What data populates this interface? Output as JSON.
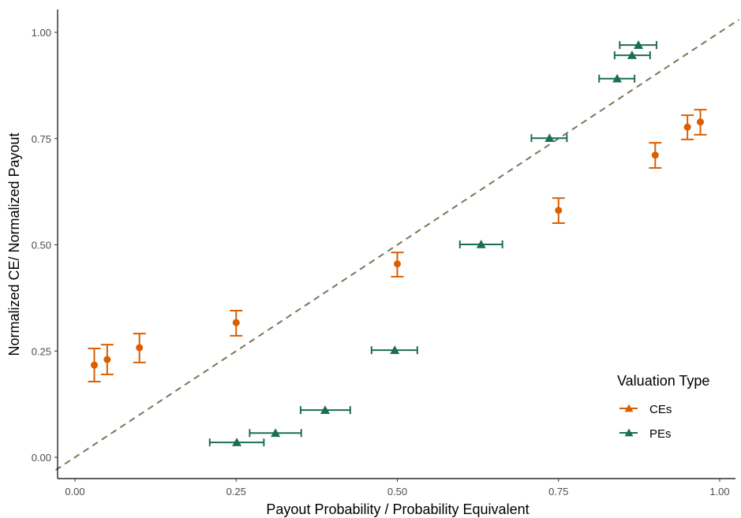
{
  "chart_data": {
    "type": "scatter",
    "xlabel": "Payout Probability / Probability Equivalent",
    "ylabel": "Normalized CE/ Normalized Payout",
    "xlim": [
      -0.02,
      1.03
    ],
    "ylim": [
      -0.03,
      1.03
    ],
    "x_ticks": [
      "0.00",
      "0.25",
      "0.50",
      "0.75",
      "1.00"
    ],
    "y_ticks": [
      "0.00",
      "0.25",
      "0.50",
      "0.75",
      "1.00"
    ],
    "grid": false,
    "reference_line": {
      "type": "y=x",
      "style": "dashed",
      "color": "#77775A"
    },
    "legend": {
      "title": "Valuation Type",
      "placement": "right"
    },
    "series": [
      {
        "name": "CEs",
        "color": "#D95F02",
        "marker": "circle",
        "error": "vertical",
        "points": [
          {
            "x": 0.03,
            "y": 0.217,
            "lo": 0.178,
            "hi": 0.256
          },
          {
            "x": 0.05,
            "y": 0.23,
            "lo": 0.195,
            "hi": 0.265
          },
          {
            "x": 0.1,
            "y": 0.258,
            "lo": 0.223,
            "hi": 0.291
          },
          {
            "x": 0.25,
            "y": 0.317,
            "lo": 0.286,
            "hi": 0.345
          },
          {
            "x": 0.5,
            "y": 0.455,
            "lo": 0.425,
            "hi": 0.482
          },
          {
            "x": 0.75,
            "y": 0.581,
            "lo": 0.551,
            "hi": 0.61
          },
          {
            "x": 0.9,
            "y": 0.711,
            "lo": 0.681,
            "hi": 0.74
          },
          {
            "x": 0.95,
            "y": 0.777,
            "lo": 0.748,
            "hi": 0.805
          },
          {
            "x": 0.97,
            "y": 0.789,
            "lo": 0.759,
            "hi": 0.818
          }
        ]
      },
      {
        "name": "PEs",
        "color": "#1B6E55",
        "marker": "triangle",
        "error": "horizontal",
        "points": [
          {
            "y": 0.035,
            "x": 0.251,
            "lo": 0.209,
            "hi": 0.293
          },
          {
            "y": 0.057,
            "x": 0.311,
            "lo": 0.271,
            "hi": 0.351
          },
          {
            "y": 0.111,
            "x": 0.388,
            "lo": 0.35,
            "hi": 0.427
          },
          {
            "y": 0.252,
            "x": 0.496,
            "lo": 0.46,
            "hi": 0.531
          },
          {
            "y": 0.501,
            "x": 0.63,
            "lo": 0.597,
            "hi": 0.663
          },
          {
            "y": 0.751,
            "x": 0.736,
            "lo": 0.708,
            "hi": 0.763
          },
          {
            "y": 0.891,
            "x": 0.841,
            "lo": 0.813,
            "hi": 0.868
          },
          {
            "y": 0.946,
            "x": 0.864,
            "lo": 0.837,
            "hi": 0.892
          },
          {
            "y": 0.97,
            "x": 0.874,
            "lo": 0.845,
            "hi": 0.902
          }
        ]
      }
    ]
  }
}
